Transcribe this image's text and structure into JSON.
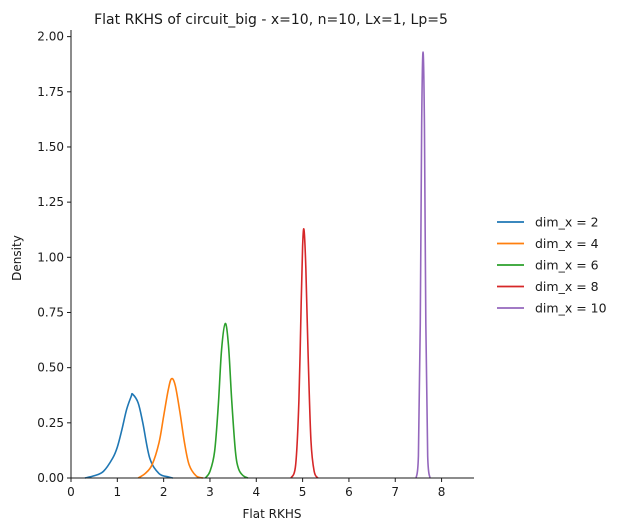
{
  "chart_data": {
    "type": "line",
    "title": "Flat RKHS of circuit_big - x=10, n=10, Lx=1, Lp=5",
    "xlabel": "Flat RKHS",
    "ylabel": "Density",
    "xlim": [
      0,
      8.7
    ],
    "ylim": [
      0,
      2.03
    ],
    "xticks": [
      0,
      1,
      2,
      3,
      4,
      5,
      6,
      7,
      8
    ],
    "yticks": [
      0.0,
      0.25,
      0.5,
      0.75,
      1.0,
      1.25,
      1.5,
      1.75,
      2.0
    ],
    "xtick_labels": [
      "0",
      "1",
      "2",
      "3",
      "4",
      "5",
      "6",
      "7",
      "8"
    ],
    "ytick_labels": [
      "0.00",
      "0.25",
      "0.50",
      "0.75",
      "1.00",
      "1.25",
      "1.50",
      "1.75",
      "2.00"
    ],
    "grid": false,
    "legend_position": "right",
    "series": [
      {
        "name": "dim_x = 2",
        "color": "#1f77b4",
        "peak_x": 1.33,
        "peak_y": 0.38,
        "x": [
          0.3,
          0.5,
          0.7,
          0.9,
          1.0,
          1.1,
          1.2,
          1.3,
          1.33,
          1.45,
          1.55,
          1.7,
          1.9,
          2.1,
          2.2
        ],
        "y": [
          0.0,
          0.01,
          0.03,
          0.09,
          0.14,
          0.22,
          0.31,
          0.37,
          0.38,
          0.34,
          0.25,
          0.09,
          0.02,
          0.005,
          0.0
        ]
      },
      {
        "name": "dim_x = 4",
        "color": "#ff7f0e",
        "peak_x": 2.17,
        "peak_y": 0.45,
        "x": [
          1.45,
          1.6,
          1.75,
          1.9,
          2.0,
          2.1,
          2.17,
          2.25,
          2.35,
          2.45,
          2.55,
          2.7,
          2.85
        ],
        "y": [
          0.0,
          0.02,
          0.06,
          0.16,
          0.28,
          0.4,
          0.45,
          0.42,
          0.3,
          0.16,
          0.06,
          0.01,
          0.0
        ]
      },
      {
        "name": "dim_x = 6",
        "color": "#2ca02c",
        "peak_x": 3.33,
        "peak_y": 0.7,
        "x": [
          2.9,
          3.0,
          3.1,
          3.18,
          3.25,
          3.33,
          3.4,
          3.47,
          3.55,
          3.62,
          3.72,
          3.82
        ],
        "y": [
          0.0,
          0.03,
          0.12,
          0.33,
          0.58,
          0.7,
          0.6,
          0.35,
          0.12,
          0.04,
          0.01,
          0.0
        ]
      },
      {
        "name": "dim_x = 8",
        "color": "#d62728",
        "peak_x": 5.03,
        "peak_y": 1.125,
        "x": [
          4.75,
          4.85,
          4.92,
          4.97,
          5.0,
          5.03,
          5.07,
          5.12,
          5.18,
          5.25,
          5.33
        ],
        "y": [
          0.0,
          0.06,
          0.35,
          0.8,
          1.05,
          1.125,
          0.95,
          0.55,
          0.17,
          0.03,
          0.0
        ]
      },
      {
        "name": "dim_x = 10",
        "color": "#9467bd",
        "peak_x": 7.6,
        "peak_y": 1.93,
        "x": [
          7.45,
          7.5,
          7.54,
          7.57,
          7.6,
          7.63,
          7.66,
          7.7,
          7.75
        ],
        "y": [
          0.0,
          0.1,
          0.7,
          1.6,
          1.93,
          1.6,
          0.7,
          0.1,
          0.0
        ]
      }
    ]
  }
}
